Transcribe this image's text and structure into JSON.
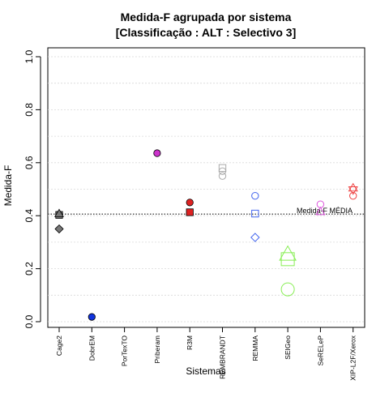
{
  "chart_data": {
    "type": "scatter",
    "title": "Medida-F agrupada por sistema",
    "subtitle": "[Classificação : ALT : Selectivo 3]",
    "xlabel": "Sistemas",
    "ylabel": "Medida-F",
    "ylim": [
      0,
      1
    ],
    "yticks": [
      0.0,
      0.2,
      0.4,
      0.6,
      0.8,
      1.0
    ],
    "ytick_labels": [
      "0.0",
      "0.2",
      "0.4",
      "0.6",
      "0.8",
      "1.0"
    ],
    "grid": "horizontal dotted",
    "categories": [
      "Cage2",
      "DobrEM",
      "PorTexTO",
      "Priberam",
      "R3M",
      "REMBRANDT",
      "REMMA",
      "SEIGeo",
      "SeRELeP",
      "XIP-L2F/Xerox"
    ],
    "reference_line": {
      "value": 0.406,
      "label": "Medida-F MÉDIA"
    },
    "points": [
      {
        "category": "Cage2",
        "y": 0.405,
        "shape": "circle",
        "filled": true,
        "color": "#777777"
      },
      {
        "category": "Cage2",
        "y": 0.403,
        "shape": "square",
        "filled": true,
        "color": "#777777"
      },
      {
        "category": "Cage2",
        "y": 0.408,
        "shape": "triangle",
        "filled": true,
        "color": "#777777"
      },
      {
        "category": "Cage2",
        "y": 0.35,
        "shape": "diamond",
        "filled": true,
        "color": "#777777"
      },
      {
        "category": "DobrEM",
        "y": 0.018,
        "shape": "circle",
        "filled": true,
        "color": "#1133dd"
      },
      {
        "category": "Priberam",
        "y": 0.636,
        "shape": "circle",
        "filled": true,
        "color": "#cc33cc"
      },
      {
        "category": "R3M",
        "y": 0.45,
        "shape": "circle",
        "filled": true,
        "color": "#dd2222"
      },
      {
        "category": "R3M",
        "y": 0.413,
        "shape": "square",
        "filled": true,
        "color": "#dd2222"
      },
      {
        "category": "REMBRANDT",
        "y": 0.58,
        "shape": "square",
        "filled": false,
        "color": "#aaaaaa"
      },
      {
        "category": "REMBRANDT",
        "y": 0.568,
        "shape": "circle",
        "filled": false,
        "color": "#aaaaaa"
      },
      {
        "category": "REMBRANDT",
        "y": 0.55,
        "shape": "circle",
        "filled": false,
        "color": "#aaaaaa"
      },
      {
        "category": "REMMA",
        "y": 0.475,
        "shape": "circle",
        "filled": false,
        "color": "#4466ee"
      },
      {
        "category": "REMMA",
        "y": 0.408,
        "shape": "square",
        "filled": false,
        "color": "#4466ee"
      },
      {
        "category": "REMMA",
        "y": 0.318,
        "shape": "diamond",
        "filled": false,
        "color": "#4466ee"
      },
      {
        "category": "SEIGeo",
        "y": 0.255,
        "shape": "triangle",
        "filled": false,
        "color": "#88ee55",
        "large": true
      },
      {
        "category": "SEIGeo",
        "y": 0.236,
        "shape": "square",
        "filled": false,
        "color": "#88ee55",
        "large": true
      },
      {
        "category": "SEIGeo",
        "y": 0.122,
        "shape": "circle",
        "filled": false,
        "color": "#88ee55",
        "large": true
      },
      {
        "category": "SeRELeP",
        "y": 0.443,
        "shape": "circle",
        "filled": false,
        "color": "#dd55dd"
      },
      {
        "category": "SeRELeP",
        "y": 0.416,
        "shape": "triangle",
        "filled": false,
        "color": "#dd55dd"
      },
      {
        "category": "XIP-L2F/Xerox",
        "y": 0.505,
        "shape": "triangle",
        "filled": false,
        "color": "#ee4444"
      },
      {
        "category": "XIP-L2F/Xerox",
        "y": 0.497,
        "shape": "triangle-down",
        "filled": false,
        "color": "#ee4444"
      },
      {
        "category": "XIP-L2F/Xerox",
        "y": 0.475,
        "shape": "circle",
        "filled": false,
        "color": "#ee4444"
      }
    ]
  }
}
